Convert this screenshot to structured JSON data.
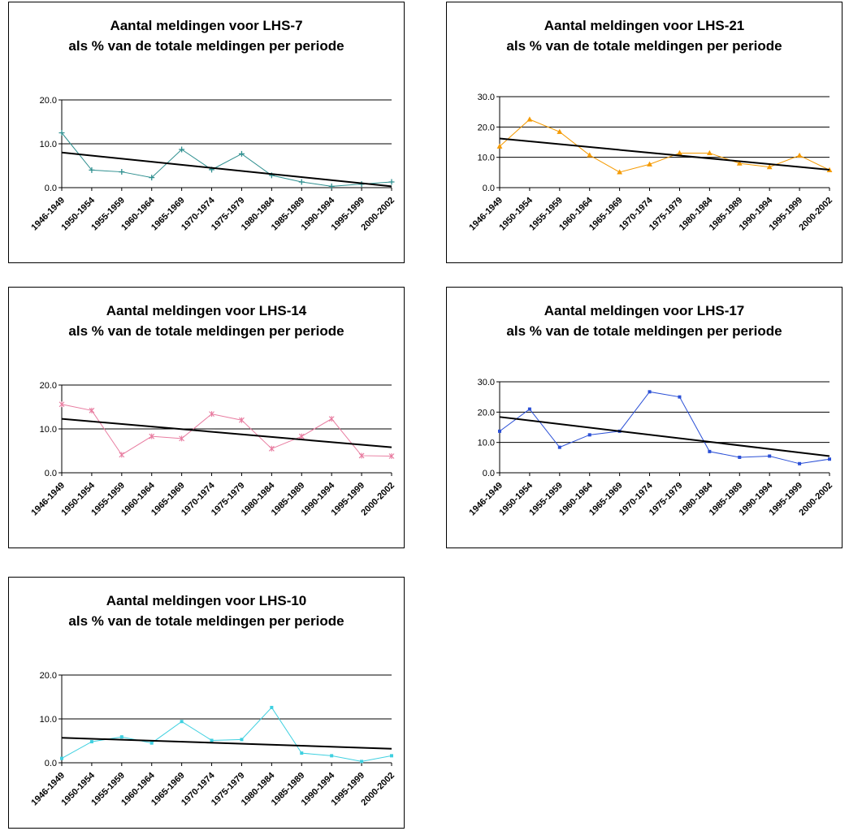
{
  "chart_data": [
    {
      "type": "line",
      "title_line1": "Aantal meldingen voor LHS-7",
      "title_line2": "als % van de totale meldingen per periode",
      "categories": [
        "1946-1949",
        "1950-1954",
        "1955-1959",
        "1960-1964",
        "1965-1969",
        "1970-1974",
        "1975-1979",
        "1980-1984",
        "1985-1989",
        "1990-1994",
        "1995-1999",
        "2000-2002"
      ],
      "series": [
        {
          "values": [
            12.5,
            4.0,
            3.6,
            2.3,
            8.7,
            4.1,
            7.7,
            2.8,
            1.3,
            0.3,
            0.8,
            1.3
          ],
          "color": "#2e8f8f",
          "marker": "plus"
        }
      ],
      "trendline": [
        8.0,
        0.3
      ],
      "ylim": [
        0,
        20
      ],
      "yticks": [
        "0.0",
        "10.0",
        "20.0"
      ],
      "ytick_values": [
        0,
        10,
        20
      ],
      "grid": true
    },
    {
      "type": "line",
      "title_line1": "Aantal meldingen voor LHS-21",
      "title_line2": "als % van de totale meldingen per periode",
      "categories": [
        "1946-1949",
        "1950-1954",
        "1955-1959",
        "1960-1964",
        "1965-1969",
        "1970-1974",
        "1975-1979",
        "1980-1984",
        "1985-1989",
        "1990-1994",
        "1995-1999",
        "2000-2002"
      ],
      "series": [
        {
          "values": [
            13.6,
            22.5,
            18.4,
            10.7,
            5.1,
            7.7,
            11.4,
            11.4,
            8.0,
            6.8,
            10.6,
            5.8
          ],
          "color": "#f59a00",
          "marker": "triangle"
        }
      ],
      "trendline": [
        16.2,
        5.9
      ],
      "ylim": [
        0,
        30
      ],
      "yticks": [
        "0.0",
        "10.0",
        "20.0",
        "30.0"
      ],
      "ytick_values": [
        0,
        10,
        20,
        30
      ],
      "grid": true
    },
    {
      "type": "line",
      "title_line1": "Aantal meldingen voor LHS-14",
      "title_line2": "als % van de totale meldingen per periode",
      "categories": [
        "1946-1949",
        "1950-1954",
        "1955-1959",
        "1960-1964",
        "1965-1969",
        "1970-1974",
        "1975-1979",
        "1980-1984",
        "1985-1989",
        "1990-1994",
        "1995-1999",
        "2000-2002"
      ],
      "series": [
        {
          "values": [
            15.6,
            14.2,
            4.1,
            8.3,
            7.8,
            13.4,
            12.0,
            5.5,
            8.3,
            12.3,
            3.9,
            3.8
          ],
          "color": "#e87ca0",
          "marker": "star"
        }
      ],
      "trendline": [
        12.3,
        5.8
      ],
      "ylim": [
        0,
        20
      ],
      "yticks": [
        "0.0",
        "10.0",
        "20.0"
      ],
      "ytick_values": [
        0,
        10,
        20
      ],
      "grid": true
    },
    {
      "type": "line",
      "title_line1": "Aantal meldingen voor LHS-17",
      "title_line2": "als % van de totale meldingen per periode",
      "categories": [
        "1946-1949",
        "1950-1954",
        "1955-1959",
        "1960-1964",
        "1965-1969",
        "1970-1974",
        "1975-1979",
        "1980-1984",
        "1985-1989",
        "1990-1994",
        "1995-1999",
        "2000-2002"
      ],
      "series": [
        {
          "values": [
            13.7,
            21.0,
            8.4,
            12.5,
            13.7,
            26.7,
            25.0,
            7.0,
            5.1,
            5.5,
            3.0,
            4.5
          ],
          "color": "#2a4fd6",
          "marker": "dot"
        }
      ],
      "trendline": [
        18.4,
        5.5
      ],
      "ylim": [
        0,
        30
      ],
      "yticks": [
        "0.0",
        "10.0",
        "20.0",
        "30.0"
      ],
      "ytick_values": [
        0,
        10,
        20,
        30
      ],
      "grid": true
    },
    {
      "type": "line",
      "title_line1": "Aantal meldingen voor LHS-10",
      "title_line2": "als % van de totale meldingen per periode",
      "categories": [
        "1946-1949",
        "1950-1954",
        "1955-1959",
        "1960-1964",
        "1965-1969",
        "1970-1974",
        "1975-1979",
        "1980-1984",
        "1985-1989",
        "1990-1994",
        "1995-1999",
        "2000-2002"
      ],
      "series": [
        {
          "values": [
            1.0,
            4.8,
            5.9,
            4.5,
            9.4,
            5.1,
            5.3,
            12.6,
            2.2,
            1.6,
            0.3,
            1.6
          ],
          "color": "#3fd0e0",
          "marker": "dot"
        }
      ],
      "trendline": [
        5.7,
        3.2
      ],
      "ylim": [
        0,
        20
      ],
      "yticks": [
        "0.0",
        "10.0",
        "20.0"
      ],
      "ytick_values": [
        0,
        10,
        20
      ],
      "grid": true
    }
  ]
}
